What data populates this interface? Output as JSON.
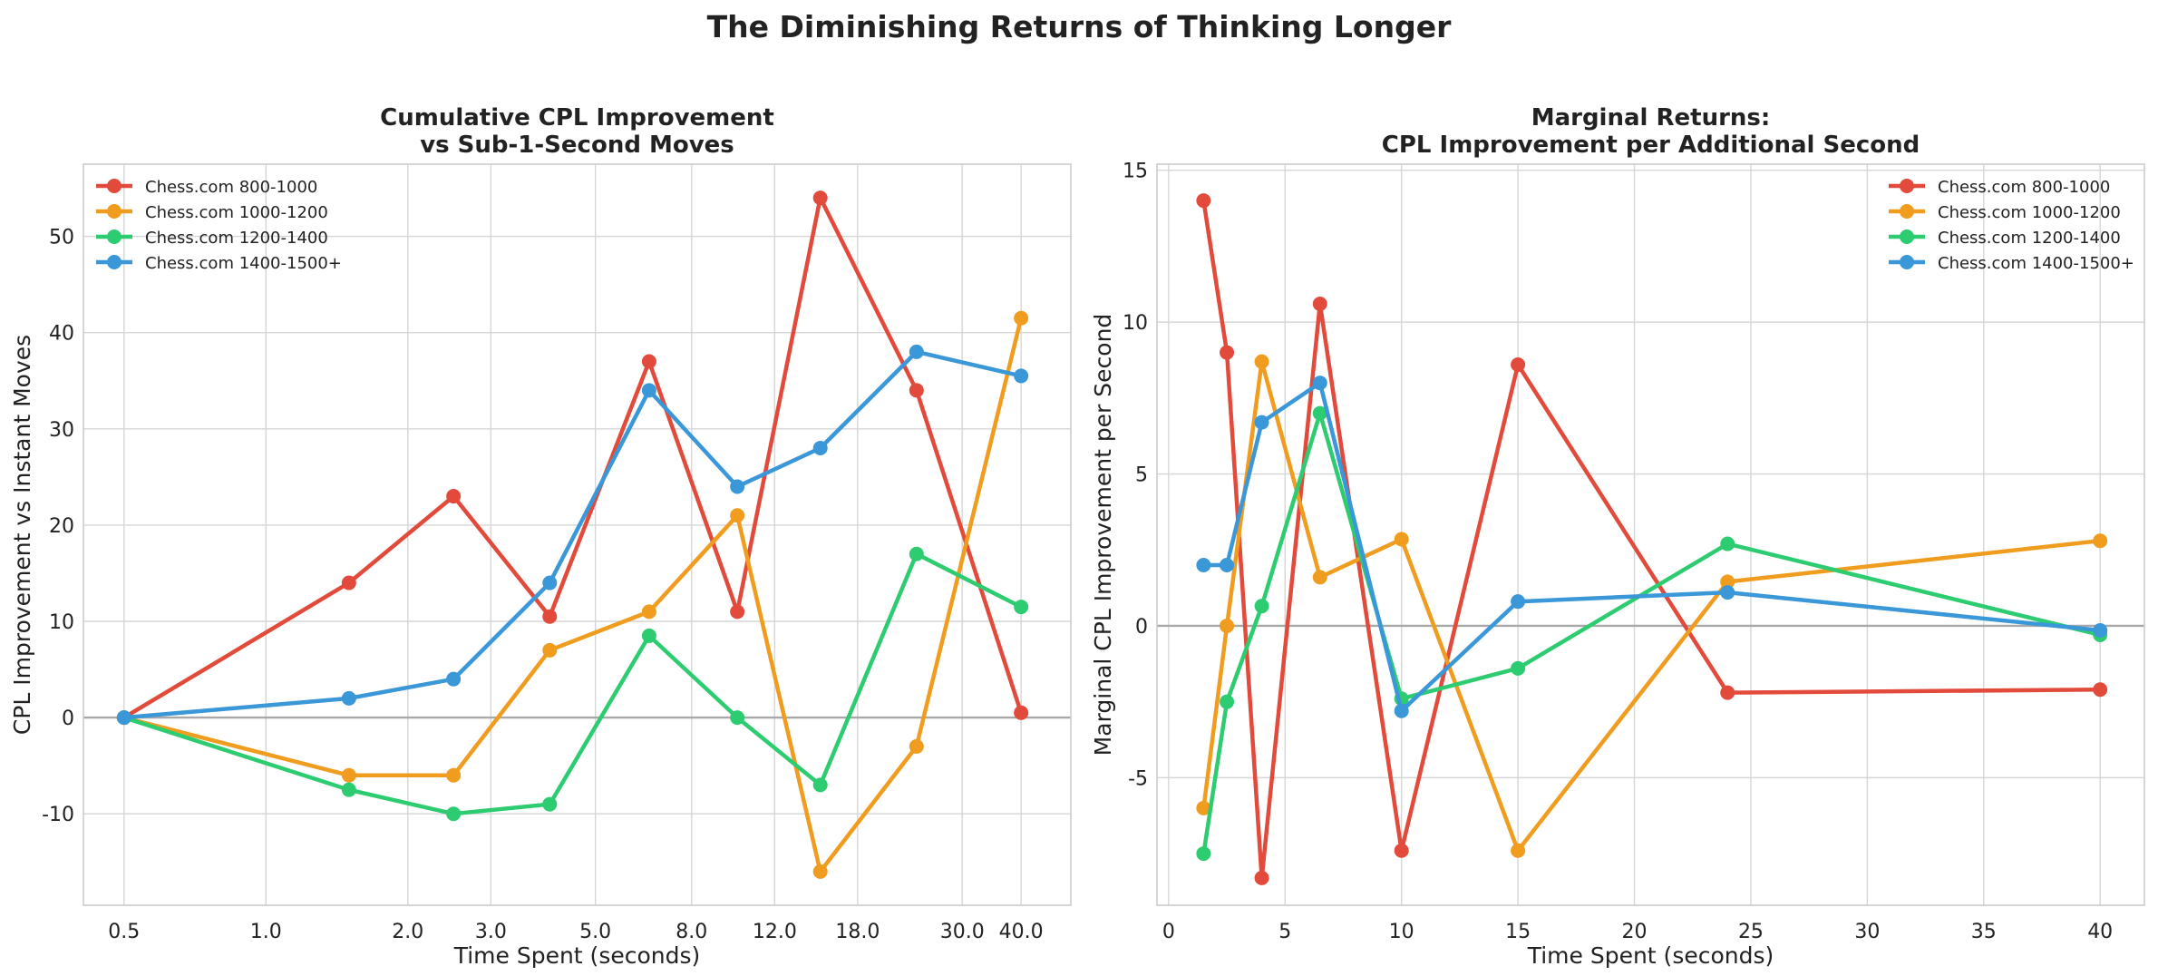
{
  "figure": {
    "title": "The Diminishing Returns of Thinking Longer"
  },
  "colors": {
    "800-1000": "#e24a3b",
    "1000-1200": "#f09c1e",
    "1200-1400": "#2ecc71",
    "1400-1500+": "#3a97d8"
  },
  "chart_data": [
    {
      "type": "line",
      "title": "Cumulative CPL Improvement\nvs Sub-1-Second Moves",
      "xlabel": "Time Spent (seconds)",
      "ylabel": "CPL Improvement vs Instant Moves",
      "xscale": "log",
      "xticks": [
        0.5,
        1.0,
        2.0,
        3.0,
        5.0,
        8.0,
        12.0,
        18.0,
        30.0,
        40.0
      ],
      "xtick_labels": [
        "0.5",
        "1.0",
        "2.0",
        "3.0",
        "5.0",
        "8.0",
        "12.0",
        "18.0",
        "30.0",
        "40.0"
      ],
      "yticks": [
        -10,
        0,
        10,
        20,
        30,
        40,
        50
      ],
      "ytick_labels": [
        "-10",
        "0",
        "10",
        "20",
        "30",
        "40",
        "50"
      ],
      "xlim": [
        0.41,
        51
      ],
      "ylim": [
        -19.5,
        57.5
      ],
      "legend": "top-left",
      "grid": true,
      "zero_line": true,
      "x": [
        0.5,
        1.5,
        2.5,
        4.0,
        6.5,
        10.0,
        15.0,
        24.0,
        40.0
      ],
      "series": [
        {
          "name": "Chess.com 800-1000",
          "color": "#e24a3b",
          "values": [
            0,
            14,
            23,
            10.5,
            37,
            11,
            54,
            34,
            0.5
          ]
        },
        {
          "name": "Chess.com 1000-1200",
          "color": "#f09c1e",
          "values": [
            0,
            -6,
            -6,
            7,
            11,
            21,
            -16,
            -3,
            41.5
          ]
        },
        {
          "name": "Chess.com 1200-1400",
          "color": "#2ecc71",
          "values": [
            0,
            -7.5,
            -10,
            -9,
            8.5,
            0,
            -7,
            17,
            11.5
          ]
        },
        {
          "name": "Chess.com 1400-1500+",
          "color": "#3a97d8",
          "values": [
            0,
            2,
            4,
            14,
            34,
            24,
            28,
            38,
            35.5
          ]
        }
      ]
    },
    {
      "type": "line",
      "title": "Marginal Returns:\nCPL Improvement per Additional Second",
      "xlabel": "Time Spent (seconds)",
      "ylabel": "Marginal CPL Improvement per Second",
      "xscale": "linear",
      "xticks": [
        0,
        5,
        10,
        15,
        20,
        25,
        30,
        35,
        40
      ],
      "xtick_labels": [
        "0",
        "5",
        "10",
        "15",
        "20",
        "25",
        "30",
        "35",
        "40"
      ],
      "yticks": [
        -5,
        0,
        5,
        10,
        15
      ],
      "ytick_labels": [
        "-5",
        "0",
        "5",
        "10",
        "15"
      ],
      "xlim": [
        -0.5,
        41.9
      ],
      "ylim": [
        -9.2,
        15.2
      ],
      "legend": "top-right",
      "grid": true,
      "zero_line": true,
      "x": [
        1.5,
        2.5,
        4.0,
        6.5,
        10.0,
        15.0,
        24.0,
        40.0
      ],
      "series": [
        {
          "name": "Chess.com 800-1000",
          "color": "#e24a3b",
          "values": [
            14,
            9,
            -8.3,
            10.6,
            -7.4,
            8.6,
            -2.2,
            -2.1
          ]
        },
        {
          "name": "Chess.com 1000-1200",
          "color": "#f09c1e",
          "values": [
            -6,
            0,
            8.7,
            1.6,
            2.85,
            -7.4,
            1.45,
            2.8
          ]
        },
        {
          "name": "Chess.com 1200-1400",
          "color": "#2ecc71",
          "values": [
            -7.5,
            -2.5,
            0.65,
            7,
            -2.4,
            -1.4,
            2.7,
            -0.3
          ]
        },
        {
          "name": "Chess.com 1400-1500+",
          "color": "#3a97d8",
          "values": [
            2,
            2,
            6.7,
            8,
            -2.8,
            0.8,
            1.1,
            -0.15
          ]
        }
      ]
    }
  ]
}
